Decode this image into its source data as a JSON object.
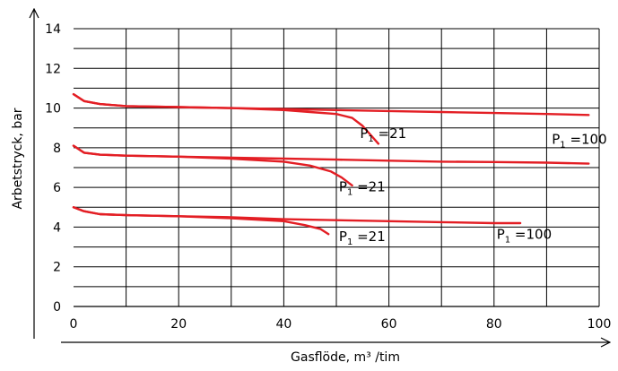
{
  "chart_data": {
    "type": "line",
    "xlabel": "Gasflöde, m³ /tim",
    "ylabel": "Arbetstryck, bar",
    "xlim": [
      0,
      100
    ],
    "ylim": [
      0,
      14
    ],
    "x_ticks": [
      "0",
      "20",
      "40",
      "60",
      "80",
      "100"
    ],
    "y_ticks": [
      "0",
      "2",
      "4",
      "6",
      "8",
      "10",
      "12",
      "14"
    ],
    "grid": true,
    "line_color": "#e31e24",
    "series": [
      {
        "x": [
          0,
          2,
          5,
          10,
          20,
          30,
          40,
          50,
          60,
          70,
          80,
          90,
          98
        ],
        "values": [
          10.7,
          10.35,
          10.2,
          10.1,
          10.05,
          10.0,
          9.95,
          9.9,
          9.85,
          9.8,
          9.75,
          9.7,
          9.65
        ]
      },
      {
        "x": [
          0,
          2,
          5,
          10,
          20,
          30,
          40,
          45,
          50,
          53,
          55,
          58
        ],
        "values": [
          10.7,
          10.35,
          10.2,
          10.1,
          10.05,
          10.0,
          9.9,
          9.8,
          9.7,
          9.5,
          9.1,
          8.2
        ]
      },
      {
        "x": [
          0,
          2,
          5,
          10,
          20,
          30,
          40,
          50,
          60,
          70,
          80,
          90,
          98
        ],
        "values": [
          8.1,
          7.75,
          7.65,
          7.6,
          7.55,
          7.5,
          7.45,
          7.4,
          7.35,
          7.3,
          7.28,
          7.25,
          7.2
        ]
      },
      {
        "x": [
          0,
          2,
          5,
          10,
          20,
          30,
          40,
          45,
          49,
          51,
          53
        ],
        "values": [
          8.1,
          7.75,
          7.65,
          7.6,
          7.55,
          7.45,
          7.3,
          7.1,
          6.8,
          6.5,
          6.1
        ]
      },
      {
        "x": [
          0,
          2,
          5,
          10,
          20,
          30,
          40,
          50,
          60,
          70,
          80,
          85
        ],
        "values": [
          5.0,
          4.8,
          4.65,
          4.6,
          4.55,
          4.5,
          4.4,
          4.35,
          4.3,
          4.25,
          4.2,
          4.2
        ]
      },
      {
        "x": [
          0,
          2,
          5,
          10,
          20,
          30,
          40,
          44,
          47,
          48.5
        ],
        "values": [
          5.0,
          4.8,
          4.65,
          4.6,
          4.55,
          4.45,
          4.3,
          4.1,
          3.9,
          3.65
        ]
      }
    ],
    "annotations": [
      {
        "text": "P",
        "sub": "1",
        "suffix": " =21",
        "x": 54.5,
        "y": 8.5
      },
      {
        "text": "P",
        "sub": "1",
        "suffix": " =100",
        "x": 91,
        "y": 8.2
      },
      {
        "text": "P",
        "sub": "1",
        "suffix": " =21",
        "x": 50.5,
        "y": 5.8
      },
      {
        "text": "P",
        "sub": "1",
        "suffix": " =21",
        "x": 50.5,
        "y": 3.3
      },
      {
        "text": "P",
        "sub": "1",
        "suffix": " =100",
        "x": 80.5,
        "y": 3.4
      }
    ]
  }
}
